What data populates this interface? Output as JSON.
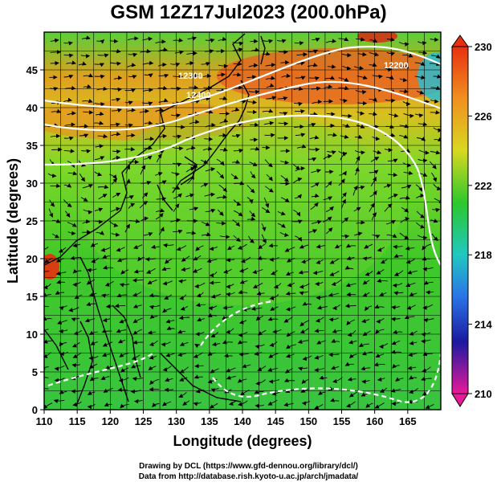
{
  "figure": {
    "title": "GSM 12Z17Jul2023 (200.0hPa)",
    "xlabel": "Longitude (degrees)",
    "ylabel": "Latitude (degrees)",
    "credit_drawing": "Drawing by DCL (https://www.gfd-dennou.org/library/dcl/)",
    "credit_data": "Data from http://database.rish.kyoto-u.ac.jp/arch/jmadata/"
  },
  "map": {
    "lon_range": [
      110,
      170
    ],
    "lat_range": [
      0,
      50
    ],
    "lon_ticks": [
      110,
      115,
      120,
      125,
      130,
      135,
      140,
      145,
      150,
      155,
      160,
      165
    ],
    "lat_ticks": [
      0,
      5,
      10,
      15,
      20,
      25,
      30,
      35,
      40,
      45
    ],
    "grid": "on",
    "contour_labels": [
      "12300",
      "12400",
      "12200"
    ]
  },
  "colorbar": {
    "ticks": [
      "230",
      "226",
      "222",
      "218",
      "214",
      "210"
    ],
    "range": [
      210,
      230
    ],
    "colors": [
      "#e8189a",
      "#1a1aa0",
      "#2b74e8",
      "#20c8c0",
      "#2cc82c",
      "#d8d820",
      "#f09020",
      "#e83010"
    ]
  }
}
